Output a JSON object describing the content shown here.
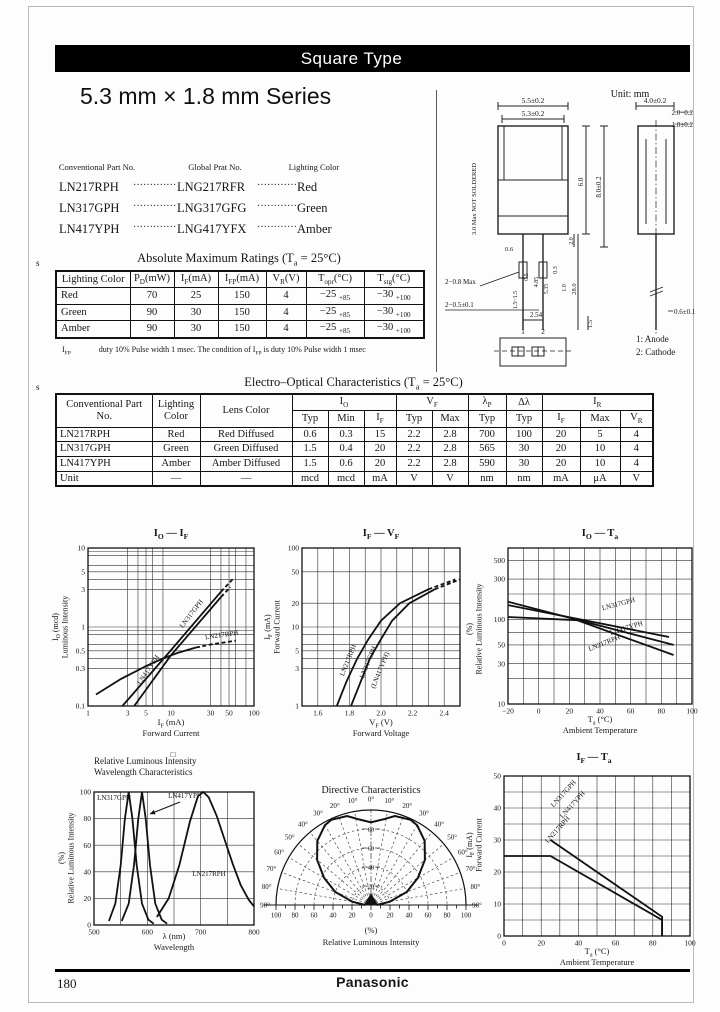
{
  "page": {
    "number": "180",
    "brand": "Panasonic"
  },
  "header": {
    "banner": "Square Type",
    "series_title": "5.3 mm × 1.8 mm Series"
  },
  "part_list": {
    "headers": [
      "Conventional Part No.",
      "Global Prat No.",
      "Lighting Color"
    ],
    "dots": "·····················",
    "rows": [
      {
        "conv": "LN217RPH",
        "global": "LNG217RFR",
        "color": "Red"
      },
      {
        "conv": "LN317GPH",
        "global": "LNG317GFG",
        "color": "Green"
      },
      {
        "conv": "LN417YPH",
        "global": "LNG417YFX",
        "color": "Amber"
      }
    ]
  },
  "abs_max": {
    "section_mark": "s",
    "title": "Absolute Maximum Ratings (T~a~ = 25°C)",
    "headers": [
      "Lighting Color",
      "P~D~(mW)",
      "I~F~(mA)",
      "I~FP~(mA)",
      "V~R~(V)",
      "T~opr~(°C)",
      "T~stg~(°C)"
    ],
    "rows": [
      [
        "Red",
        "70",
        "25",
        "150",
        "4",
        "−25 ~ +85",
        "−30 ~ +100"
      ],
      [
        "Green",
        "90",
        "30",
        "150",
        "4",
        "−25 ~ +85",
        "−30 ~ +100"
      ],
      [
        "Amber",
        "90",
        "30",
        "150",
        "4",
        "−25 ~ +85",
        "−30 ~ +100"
      ]
    ],
    "footnote_label": "I~FP~",
    "footnote": "duty 10% Pulse width 1 msec. The condition of I~FP~ is duty 10% Pulse width 1 msec"
  },
  "eo": {
    "section_mark": "s",
    "title": "Electro–Optical Characteristics (T~a~ = 25°C)",
    "headers": {
      "conv": "Conventional Part No.",
      "light": "Lighting Color",
      "lens": "Lens Color",
      "io": "I~O~",
      "vf": "V~F~",
      "lp": "λ~P~",
      "dl": "Δλ",
      "ir": "I~R~",
      "sub": [
        "Typ",
        "Min",
        "I~F~",
        "Typ",
        "Max",
        "Typ",
        "Typ",
        "I~F~",
        "Max",
        "V~R~"
      ]
    },
    "rows": [
      [
        "LN217RPH",
        "Red",
        "Red Diffused",
        "0.6",
        "0.3",
        "15",
        "2.2",
        "2.8",
        "700",
        "100",
        "20",
        "5",
        "4"
      ],
      [
        "LN317GPH",
        "Green",
        "Green Diffused",
        "1.5",
        "0.4",
        "20",
        "2.2",
        "2.8",
        "565",
        "30",
        "20",
        "10",
        "4"
      ],
      [
        "LN417YPH",
        "Amber",
        "Amber Diffused",
        "1.5",
        "0.6",
        "20",
        "2.2",
        "2.8",
        "590",
        "30",
        "20",
        "10",
        "4"
      ],
      [
        "Unit",
        "—",
        "—",
        "mcd",
        "mcd",
        "mA",
        "V",
        "V",
        "nm",
        "nm",
        "mA",
        "μA",
        "V"
      ]
    ]
  },
  "drawing": {
    "unit": "Unit: mm",
    "dims": {
      "front_w1": "5.5±0.2",
      "front_w2": "5.3±0.2",
      "not_soldered": "3.0 Max  NOT SOLDERED",
      "h_6": "6.0",
      "h_8": "8.0±0.2",
      "h_2": "2.0",
      "lead_06": "0.6",
      "d_05": "0.5",
      "d_485": "4.85",
      "d_535": "5.35",
      "d_03": "0.3",
      "d_10": "1.0",
      "taper": "1.5~1.5",
      "lead_len": "28.0",
      "lead_max": "2−0.8 Max",
      "lead_tol": "2−0.5±0.1",
      "pitch": "2.54",
      "pin1": "1",
      "pin2": "2",
      "b_15": "1.5",
      "side_w": "4.0±0.2",
      "side_t1": "2.0−0.2",
      "side_t2": "1.8±0.2",
      "tip": "0.6±0.1"
    },
    "legend": [
      "1: Anode",
      "2: Cathode"
    ]
  },
  "chart_data": [
    {
      "type": "line",
      "title": "I~O~ — I~F~",
      "xlabel": "I~F~ (mA)",
      "xlabel2": "Forward Current",
      "ylabel": "I~O~ (mcd)",
      "ylabel2": "Luminous Intensity",
      "xscale": "log",
      "yscale": "log",
      "xlim": [
        1,
        100
      ],
      "ylim": [
        0.1,
        10
      ],
      "xticks": [
        [
          1,
          "1"
        ],
        [
          3,
          "3"
        ],
        [
          5,
          "5"
        ],
        [
          10,
          "10"
        ],
        [
          30,
          "30"
        ],
        [
          50,
          "50"
        ],
        [
          100,
          "100"
        ]
      ],
      "yticks": [
        [
          0.1,
          "0.1"
        ],
        [
          0.3,
          "0.3"
        ],
        [
          0.5,
          "0.5"
        ],
        [
          1,
          "1"
        ],
        [
          3,
          "3"
        ],
        [
          5,
          "5"
        ],
        [
          10,
          "10"
        ]
      ],
      "xgrid": [
        3,
        4,
        5,
        6,
        8,
        30,
        40,
        50,
        60,
        80
      ],
      "ygrid": [
        0.3,
        0.4,
        0.5,
        0.6,
        0.8,
        0.9,
        1,
        3,
        4,
        5,
        6,
        8,
        9
      ],
      "series": [
        {
          "name": "LN317GPH",
          "points": [
            [
              2.6,
              0.1
            ],
            [
              10,
              0.51
            ],
            [
              40,
              2.8
            ],
            [
              55,
              4.0
            ]
          ],
          "dash_from": 2
        },
        {
          "name": "LN417YPH",
          "points": [
            [
              3.6,
              0.1
            ],
            [
              10,
              0.44
            ],
            [
              40,
              2.4
            ],
            [
              52,
              3.2
            ]
          ],
          "dash_from": 2
        },
        {
          "name": "LN217RPH",
          "points": [
            [
              1.25,
              0.14
            ],
            [
              2.5,
              0.22
            ],
            [
              5,
              0.32
            ],
            [
              8,
              0.4
            ],
            [
              12,
              0.47
            ],
            [
              20,
              0.55
            ],
            [
              30,
              0.6
            ],
            [
              45,
              0.64
            ],
            [
              60,
              0.67
            ]
          ],
          "dash_from": 5
        }
      ]
    },
    {
      "type": "line",
      "title": "I~F~ — V~F~",
      "xlabel": "V~F~ (V)",
      "xlabel2": "Forward Voltage",
      "ylabel": "I~F~ (mA)",
      "ylabel2": "Forward Current",
      "xscale": "lin",
      "yscale": "log",
      "xlim": [
        1.5,
        2.5
      ],
      "ylim": [
        1,
        100
      ],
      "xticks": [
        [
          1.6,
          "1.6"
        ],
        [
          1.8,
          "1.8"
        ],
        [
          2,
          "2.0"
        ],
        [
          2.2,
          "2.2"
        ],
        [
          2.4,
          "2.4"
        ]
      ],
      "yticks": [
        [
          1,
          "1"
        ],
        [
          3,
          "3"
        ],
        [
          5,
          "5"
        ],
        [
          10,
          "10"
        ],
        [
          20,
          "20"
        ],
        [
          50,
          "50"
        ],
        [
          100,
          "100"
        ]
      ],
      "xgrid": [
        1.6,
        1.7,
        1.8,
        1.9,
        2,
        2.1,
        2.2,
        2.3,
        2.4
      ],
      "ygrid": [
        3,
        4,
        5,
        6,
        8,
        10,
        20,
        50
      ],
      "series": [
        {
          "name": "LN217RPH",
          "points": [
            [
              1.72,
              1
            ],
            [
              1.78,
              2
            ],
            [
              1.85,
              4
            ],
            [
              1.92,
              7
            ],
            [
              2.0,
              12
            ],
            [
              2.12,
              20
            ],
            [
              2.3,
              30
            ],
            [
              2.47,
              40
            ]
          ],
          "dash_from": 6
        },
        {
          "name": "LN317GPH (LN417YPH)",
          "points": [
            [
              1.81,
              1
            ],
            [
              1.87,
              2
            ],
            [
              1.93,
              4
            ],
            [
              2.0,
              7
            ],
            [
              2.07,
              12
            ],
            [
              2.18,
              20
            ],
            [
              2.34,
              30
            ],
            [
              2.5,
              40
            ]
          ],
          "dash_from": 6
        }
      ]
    },
    {
      "type": "line",
      "title": "I~O~ — T~a~",
      "xlabel": "T~a~ (°C)",
      "xlabel2": "Ambient Temperature",
      "ylabel": "(%)",
      "ylabel2": "Relative Luminous Intensity",
      "xscale": "lin",
      "yscale": "log",
      "xlim": [
        -20,
        100
      ],
      "ylim": [
        10,
        700
      ],
      "xticks": [
        [
          -20,
          "−20"
        ],
        [
          0,
          "0"
        ],
        [
          20,
          "20"
        ],
        [
          40,
          "40"
        ],
        [
          60,
          "60"
        ],
        [
          80,
          "80"
        ],
        [
          100,
          "100"
        ]
      ],
      "yticks": [
        [
          10,
          "10"
        ],
        [
          30,
          "30"
        ],
        [
          50,
          "50"
        ],
        [
          100,
          "100"
        ],
        [
          300,
          "300"
        ],
        [
          500,
          "500"
        ]
      ],
      "xgrid": [
        -10,
        0,
        10,
        20,
        30,
        40,
        50,
        60,
        70,
        80,
        90
      ],
      "ygrid": [
        20,
        30,
        50,
        70,
        100,
        200,
        300,
        500
      ],
      "series": [
        {
          "name": "LN317GPH",
          "points": [
            [
              -20,
              148
            ],
            [
              85,
              62
            ]
          ]
        },
        {
          "name": "LN417YPH",
          "points": [
            [
              -20,
              162
            ],
            [
              88,
              50
            ]
          ]
        },
        {
          "name": "LN217RPH",
          "points": [
            [
              -20,
              107
            ],
            [
              25,
              98
            ],
            [
              88,
              38
            ]
          ]
        }
      ]
    },
    {
      "type": "line",
      "title_lines": [
        "Relative Luminous Intensity",
        "Wavelength Characteristics"
      ],
      "marker": "□",
      "xlabel": "λ (nm)",
      "xlabel2": "Wavelength",
      "ylabel": "(%)",
      "ylabel2": "Relative Luminous Intensity",
      "xscale": "lin",
      "yscale": "lin",
      "xlim": [
        500,
        800
      ],
      "ylim": [
        0,
        100
      ],
      "xticks": [
        [
          500,
          "500"
        ],
        [
          600,
          "600"
        ],
        [
          700,
          "700"
        ],
        [
          800,
          "800"
        ]
      ],
      "yticks": [
        [
          0,
          "0"
        ],
        [
          20,
          "20"
        ],
        [
          40,
          "40"
        ],
        [
          60,
          "60"
        ],
        [
          80,
          "80"
        ],
        [
          100,
          "100"
        ]
      ],
      "xgrid": [
        550,
        600,
        650,
        700,
        750
      ],
      "ygrid": [
        20,
        40,
        60,
        80
      ],
      "series": [
        {
          "name": "LN317GPH",
          "points": [
            [
              528,
              3
            ],
            [
              540,
              16
            ],
            [
              550,
              45
            ],
            [
              558,
              80
            ],
            [
              565,
              100
            ],
            [
              572,
              80
            ],
            [
              580,
              45
            ],
            [
              590,
              16
            ],
            [
              602,
              4
            ],
            [
              612,
              1
            ]
          ]
        },
        {
          "name": "LN417YPH",
          "points": [
            [
              552,
              3
            ],
            [
              565,
              16
            ],
            [
              575,
              45
            ],
            [
              583,
              80
            ],
            [
              590,
              100
            ],
            [
              597,
              80
            ],
            [
              605,
              45
            ],
            [
              615,
              16
            ],
            [
              627,
              4
            ],
            [
              637,
              1
            ]
          ]
        },
        {
          "name": "LN217RPH",
          "points": [
            [
              618,
              6
            ],
            [
              640,
              20
            ],
            [
              660,
              45
            ],
            [
              680,
              78
            ],
            [
              695,
              97
            ],
            [
              705,
              100
            ],
            [
              715,
              96
            ],
            [
              730,
              82
            ],
            [
              745,
              64
            ],
            [
              760,
              46
            ],
            [
              775,
              30
            ],
            [
              790,
              19
            ],
            [
              800,
              14
            ]
          ]
        }
      ]
    },
    {
      "type": "polar",
      "title": "Directive Characteristics",
      "angle_labels": [
        "0°",
        "10°",
        "20°",
        "30°",
        "40°",
        "50°",
        "60°",
        "70°",
        "80°",
        "90°"
      ],
      "r_labels": [
        "100",
        "80",
        "60",
        "40",
        "20",
        "0",
        "20",
        "40",
        "60",
        "80",
        "100"
      ],
      "inner_labels": [
        "80",
        "60",
        "40",
        "20"
      ],
      "xlabel": "(%)",
      "xlabel2": "Relative Luminous Intensity",
      "pattern": [
        [
          -90,
          6
        ],
        [
          -80,
          20
        ],
        [
          -70,
          40
        ],
        [
          -60,
          57
        ],
        [
          -50,
          74
        ],
        [
          -40,
          88
        ],
        [
          -30,
          97
        ],
        [
          -25,
          99
        ],
        [
          -15,
          97
        ],
        [
          -8,
          91
        ],
        [
          0,
          87
        ],
        [
          8,
          91
        ],
        [
          15,
          97
        ],
        [
          25,
          99
        ],
        [
          30,
          97
        ],
        [
          40,
          88
        ],
        [
          50,
          74
        ],
        [
          60,
          57
        ],
        [
          70,
          40
        ],
        [
          80,
          20
        ],
        [
          90,
          6
        ]
      ]
    },
    {
      "type": "line",
      "title": "I~F~ — T~a~",
      "xlabel": "T~a~ (°C)",
      "xlabel2": "Ambient Temperature",
      "ylabel": "I~F~ (mA)",
      "ylabel2": "Forward Current",
      "xscale": "lin",
      "yscale": "lin",
      "xlim": [
        0,
        100
      ],
      "ylim": [
        0,
        50
      ],
      "xticks": [
        [
          0,
          "0"
        ],
        [
          20,
          "20"
        ],
        [
          40,
          "40"
        ],
        [
          60,
          "60"
        ],
        [
          80,
          "80"
        ],
        [
          100,
          "100"
        ]
      ],
      "yticks": [
        [
          0,
          "0"
        ],
        [
          10,
          "10"
        ],
        [
          20,
          "20"
        ],
        [
          30,
          "30"
        ],
        [
          40,
          "40"
        ],
        [
          50,
          "50"
        ]
      ],
      "xgrid": [
        10,
        20,
        30,
        40,
        50,
        60,
        70,
        80,
        90
      ],
      "ygrid": [
        5,
        10,
        15,
        20,
        25,
        30,
        35,
        40,
        45
      ],
      "series": [
        {
          "name": "LN317GPH LN417YPH",
          "points": [
            [
              25,
              30
            ],
            [
              85,
              6
            ],
            [
              85,
              0
            ]
          ]
        },
        {
          "name": "LN217RPH",
          "points": [
            [
              0,
              25
            ],
            [
              25,
              25
            ],
            [
              85,
              5
            ],
            [
              85,
              0
            ]
          ]
        }
      ]
    }
  ]
}
